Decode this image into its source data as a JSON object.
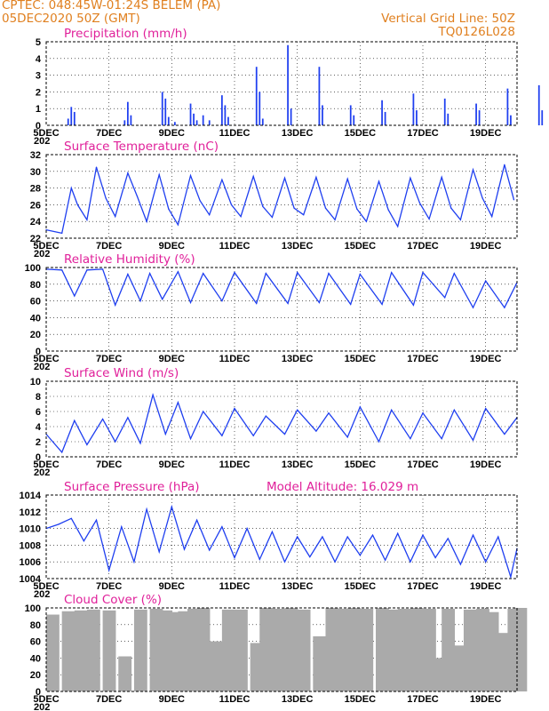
{
  "header": {
    "line1": "CPTEC:   048:45W-01:24S   BELEM (PA)",
    "line2": "05DEC2020 50Z (GMT)",
    "right1": "Vertical Grid Line: 50Z",
    "right2": "TQ0126L028"
  },
  "colors": {
    "header": "#e08020",
    "title": "#e0209a",
    "series": "#1f3ff0",
    "bars": "#1f3ff0",
    "cloud": "#aaaaaa"
  },
  "x_tick_labels": [
    "5DEC",
    "7DEC",
    "9DEC",
    "11DEC",
    "13DEC",
    "15DEC",
    "17DEC",
    "19DEC"
  ],
  "year_fragment": "202",
  "panels": [
    {
      "id": "precip",
      "title": "Precipitation (mm/h)",
      "yticks": [
        "0",
        "1",
        "2",
        "3",
        "4",
        "5"
      ]
    },
    {
      "id": "temp",
      "title": "Surface Temperature (nC)",
      "yticks": [
        "22",
        "24",
        "26",
        "28",
        "30",
        "32"
      ]
    },
    {
      "id": "rh",
      "title": "Relative Humidity (%)",
      "yticks": [
        "0",
        "20",
        "40",
        "60",
        "80",
        "100"
      ]
    },
    {
      "id": "wind",
      "title": "Surface Wind (m/s)",
      "yticks": [
        "0",
        "2",
        "4",
        "6",
        "8",
        "10"
      ]
    },
    {
      "id": "press",
      "title": "Surface Pressure (hPa)",
      "extra": "Model Altitude: 16.029 m",
      "yticks": [
        "1004",
        "1006",
        "1008",
        "1010",
        "1012",
        "1014"
      ]
    },
    {
      "id": "cloud",
      "title": "Cloud Cover (%)",
      "yticks": [
        "0",
        "20",
        "40",
        "60",
        "80",
        "100"
      ]
    }
  ],
  "chart_data": [
    {
      "type": "bar",
      "title": "Precipitation (mm/h)",
      "x_days": [
        0.7,
        0.8,
        0.9,
        2.5,
        2.6,
        2.7,
        3.7,
        3.8,
        3.9,
        4.1,
        4.6,
        4.7,
        4.8,
        5.0,
        5.2,
        5.6,
        5.7,
        5.8,
        6.7,
        6.8,
        6.9,
        7.7,
        7.8,
        8.7,
        8.8,
        9.7,
        9.8,
        10.7,
        10.8,
        11.7,
        11.8,
        12.7,
        12.8,
        13.7,
        13.8,
        14.7,
        14.8,
        15.7,
        15.8
      ],
      "values": [
        0.4,
        1.1,
        0.8,
        0.3,
        1.4,
        0.6,
        2.0,
        1.6,
        0.5,
        0.2,
        1.3,
        0.7,
        0.3,
        0.6,
        0.3,
        1.8,
        1.2,
        0.5,
        3.5,
        2.0,
        0.4,
        4.8,
        1.0,
        3.5,
        1.2,
        1.2,
        0.6,
        1.5,
        0.8,
        1.9,
        0.9,
        1.6,
        0.7,
        1.3,
        0.9,
        2.2,
        0.6,
        2.4,
        0.9
      ],
      "ylim": [
        0,
        5
      ]
    },
    {
      "type": "line",
      "title": "Surface Temperature (nC)",
      "x_days": [
        0,
        0.5,
        0.8,
        1.0,
        1.3,
        1.6,
        1.9,
        2.2,
        2.6,
        2.9,
        3.2,
        3.6,
        3.9,
        4.2,
        4.6,
        4.9,
        5.2,
        5.6,
        5.9,
        6.2,
        6.6,
        6.9,
        7.2,
        7.6,
        7.9,
        8.2,
        8.6,
        8.9,
        9.2,
        9.6,
        9.9,
        10.2,
        10.6,
        10.9,
        11.2,
        11.6,
        11.9,
        12.2,
        12.6,
        12.9,
        13.2,
        13.6,
        13.9,
        14.2,
        14.6,
        14.9
      ],
      "values": [
        23.0,
        22.6,
        28.0,
        26.0,
        24.2,
        30.5,
        26.8,
        24.6,
        29.8,
        27.0,
        24.0,
        29.6,
        25.5,
        23.6,
        29.5,
        26.5,
        24.8,
        29.0,
        26.0,
        24.6,
        29.4,
        25.8,
        24.5,
        29.2,
        25.6,
        24.8,
        29.3,
        25.6,
        24.2,
        29.1,
        25.5,
        24.0,
        28.8,
        25.4,
        23.4,
        29.2,
        26.2,
        24.3,
        29.3,
        25.6,
        24.2,
        30.2,
        26.8,
        24.6,
        30.8,
        26.6
      ],
      "ylim": [
        22,
        32
      ]
    },
    {
      "type": "line",
      "title": "Relative Humidity (%)",
      "x_days": [
        0,
        0.5,
        0.9,
        1.3,
        1.8,
        2.2,
        2.6,
        3.0,
        3.3,
        3.7,
        4.2,
        4.6,
        5.0,
        5.6,
        6.0,
        6.7,
        7.0,
        7.7,
        8.0,
        8.7,
        9.0,
        9.7,
        10.0,
        10.7,
        11.0,
        11.7,
        12.0,
        12.7,
        13.0,
        13.6,
        14.0,
        14.6,
        15.0
      ],
      "values": [
        98,
        97,
        66,
        97,
        98,
        55,
        92,
        60,
        93,
        62,
        95,
        58,
        93,
        60,
        94,
        57,
        93,
        57,
        94,
        58,
        93,
        56,
        92,
        56,
        94,
        55,
        94,
        64,
        93,
        52,
        84,
        52,
        82
      ],
      "ylim": [
        0,
        100
      ]
    },
    {
      "type": "line",
      "title": "Surface Wind (m/s)",
      "x_days": [
        0,
        0.5,
        0.9,
        1.3,
        1.8,
        2.2,
        2.6,
        3.0,
        3.4,
        3.8,
        4.2,
        4.6,
        5.0,
        5.6,
        6.0,
        6.6,
        7.0,
        7.6,
        8.0,
        8.6,
        9.0,
        9.6,
        10.0,
        10.6,
        11.0,
        11.6,
        12.0,
        12.6,
        13.0,
        13.6,
        14.0,
        14.6,
        15.0
      ],
      "values": [
        3.0,
        0.6,
        4.8,
        1.6,
        5.0,
        2.0,
        5.2,
        1.8,
        8.2,
        3.0,
        7.2,
        2.4,
        6.0,
        2.8,
        6.4,
        2.8,
        5.4,
        3.0,
        6.2,
        3.4,
        5.8,
        2.6,
        6.6,
        2.0,
        6.2,
        2.4,
        5.8,
        2.4,
        6.2,
        2.2,
        6.4,
        3.0,
        5.2
      ],
      "ylim": [
        0,
        10
      ]
    },
    {
      "type": "line",
      "title": "Surface Pressure (hPa)",
      "x_days": [
        0,
        0.4,
        0.8,
        1.2,
        1.6,
        2.0,
        2.4,
        2.8,
        3.2,
        3.6,
        4.0,
        4.4,
        4.8,
        5.2,
        5.6,
        6.0,
        6.4,
        6.8,
        7.2,
        7.6,
        8.0,
        8.4,
        8.8,
        9.2,
        9.6,
        10.0,
        10.4,
        10.8,
        11.2,
        11.6,
        12.0,
        12.4,
        12.8,
        13.2,
        13.6,
        14.0,
        14.4,
        14.8,
        15.0
      ],
      "values": [
        1010.0,
        1010.5,
        1011.2,
        1008.5,
        1011.0,
        1005.0,
        1010.2,
        1006.0,
        1012.3,
        1007.2,
        1012.6,
        1007.5,
        1011.0,
        1007.4,
        1010.2,
        1006.5,
        1010.0,
        1006.3,
        1009.6,
        1006.0,
        1009.0,
        1006.6,
        1009.0,
        1006.0,
        1009.0,
        1006.8,
        1009.2,
        1006.2,
        1009.4,
        1006.0,
        1009.2,
        1006.5,
        1008.8,
        1005.7,
        1009.2,
        1006.0,
        1009.0,
        1004.2,
        1007.6
      ],
      "ylim": [
        1004,
        1014
      ]
    },
    {
      "type": "bar",
      "title": "Cloud Cover (%)",
      "x_days": [
        0,
        0.5,
        0.9,
        1.3,
        1.8,
        2.3,
        2.8,
        3.3,
        3.6,
        3.9,
        4.2,
        4.5,
        4.8,
        5.2,
        5.6,
        6.0,
        6.5,
        6.8,
        7.2,
        7.6,
        8.0,
        8.5,
        8.9,
        9.2,
        9.6,
        10.0,
        10.5,
        10.8,
        11.2,
        11.6,
        12.0,
        12.3,
        12.6,
        12.9,
        13.3,
        13.7,
        14.0,
        14.3,
        14.7,
        14.9
      ],
      "values": [
        92,
        96,
        97,
        98,
        97,
        42,
        98,
        99,
        97,
        95,
        96,
        99,
        100,
        60,
        98,
        98,
        58,
        100,
        99,
        100,
        98,
        66,
        100,
        99,
        100,
        99,
        100,
        98,
        99,
        100,
        99,
        40,
        99,
        55,
        98,
        99,
        95,
        70,
        99,
        100
      ],
      "ylim": [
        0,
        100
      ]
    }
  ]
}
